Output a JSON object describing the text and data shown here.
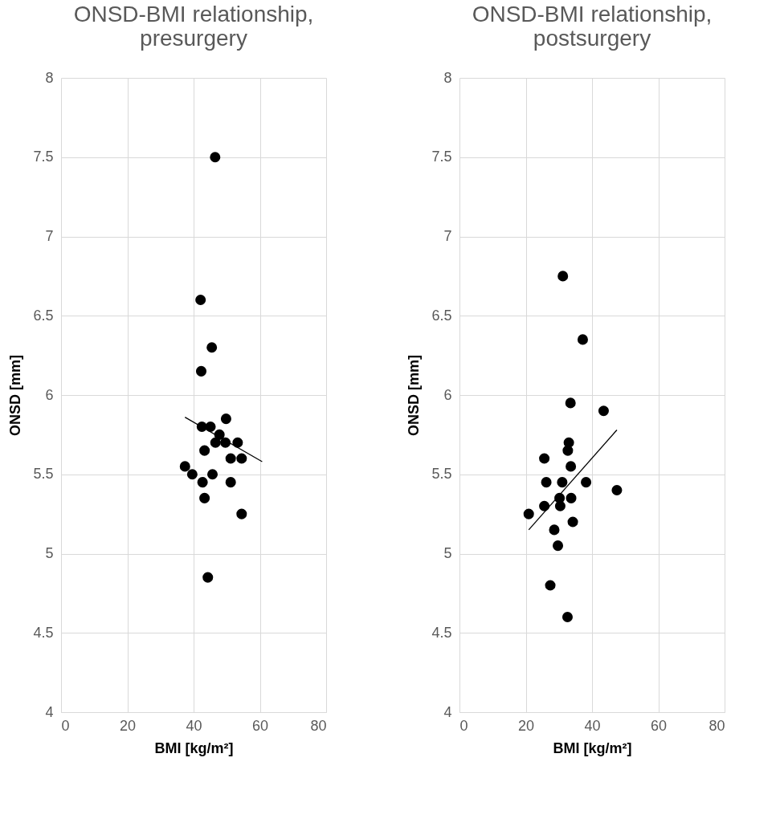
{
  "chart_data": [
    {
      "type": "scatter",
      "title": "ONSD-BMI relationship, presurgery",
      "xlabel": "BMI [kg/m²]",
      "ylabel": "ONSD [mm]",
      "xlim": [
        0,
        80
      ],
      "xticks": [
        0,
        20,
        40,
        60,
        80
      ],
      "ylim": [
        4,
        8
      ],
      "yticks": [
        4,
        4.5,
        5,
        5.5,
        6,
        6.5,
        7,
        7.5,
        8
      ],
      "grid": true,
      "series": [
        {
          "marker": "circle",
          "color": "#000000",
          "x": [
            46.5,
            42.1,
            45.5,
            42.3,
            49.8,
            42.5,
            45.1,
            47.8,
            46.6,
            49.6,
            53.3,
            43.3,
            51.2,
            54.5,
            37.4,
            39.6,
            45.7,
            42.7,
            51.2,
            43.3,
            54.5,
            44.3
          ],
          "values": [
            7.5,
            6.6,
            6.3,
            6.15,
            5.85,
            5.8,
            5.8,
            5.75,
            5.7,
            5.7,
            5.7,
            5.65,
            5.6,
            5.6,
            5.55,
            5.5,
            5.5,
            5.45,
            5.45,
            5.35,
            5.25,
            4.85
          ]
        },
        {
          "type": "line",
          "color": "#000000",
          "line_style": "solid",
          "x": [
            37.4,
            60.7
          ],
          "values": [
            5.86,
            5.58
          ]
        }
      ]
    },
    {
      "type": "scatter",
      "title": "ONSD-BMI relationship, postsurgery",
      "xlabel": "BMI [kg/m²]",
      "ylabel": "ONSD [mm]",
      "xlim": [
        0,
        80
      ],
      "xticks": [
        0,
        20,
        40,
        60,
        80
      ],
      "ylim": [
        4,
        8
      ],
      "yticks": [
        4,
        4.5,
        5,
        5.5,
        6,
        6.5,
        7,
        7.5,
        8
      ],
      "grid": true,
      "series": [
        {
          "marker": "circle",
          "color": "#000000",
          "x": [
            31.2,
            37.2,
            33.5,
            43.5,
            33.0,
            32.7,
            25.6,
            33.6,
            26.2,
            31.0,
            38.2,
            47.5,
            30.2,
            33.7,
            25.6,
            30.4,
            20.9,
            34.2,
            28.6,
            29.7,
            27.4,
            32.6
          ],
          "values": [
            6.75,
            6.35,
            5.95,
            5.9,
            5.7,
            5.65,
            5.6,
            5.55,
            5.45,
            5.45,
            5.45,
            5.4,
            5.35,
            5.35,
            5.3,
            5.3,
            5.25,
            5.2,
            5.15,
            5.05,
            4.8,
            4.6
          ]
        },
        {
          "type": "line",
          "color": "#000000",
          "line_style": "solid",
          "x": [
            20.9,
            47.5
          ],
          "values": [
            5.15,
            5.78
          ]
        }
      ]
    }
  ]
}
